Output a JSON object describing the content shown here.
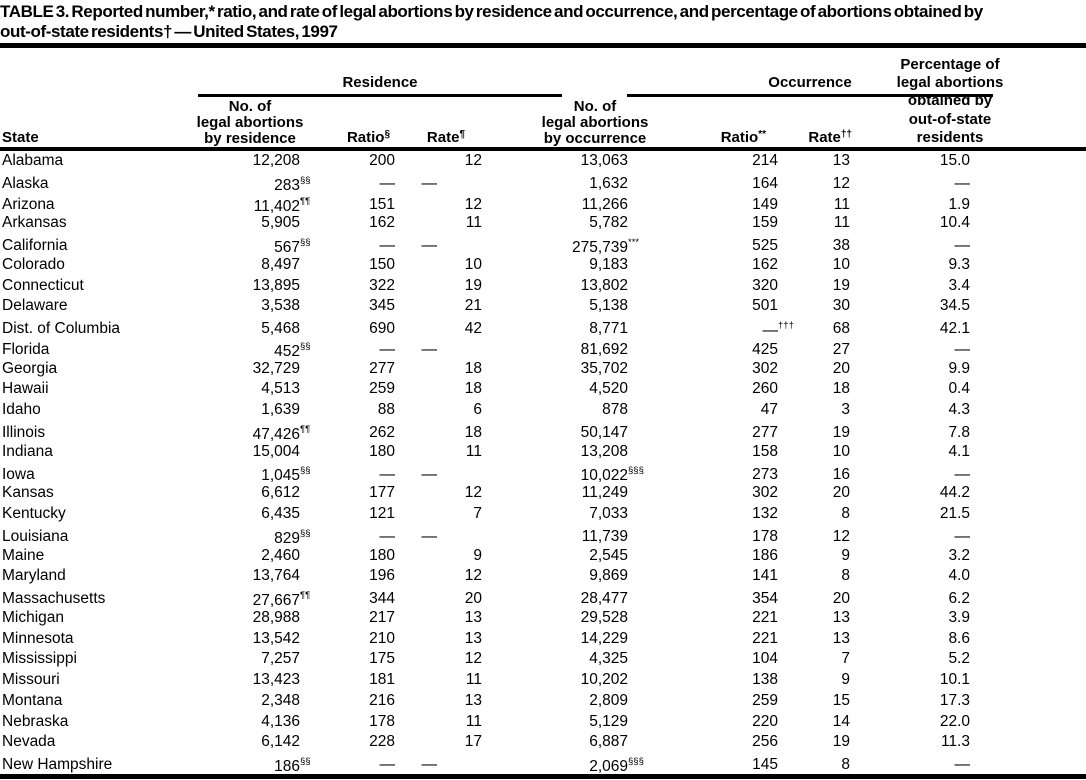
{
  "colors": {
    "text": "#000000",
    "background": "#ffffff"
  },
  "title": {
    "line1": "TABLE 3. Reported number,* ratio, and rate of legal abortions by residence and occurrence, and percentage of abortions obtained by",
    "line2": "out-of-state residents† — United States, 1997"
  },
  "table": {
    "col_state": "State",
    "groups": {
      "residence": "Residence",
      "occurrence": "Occurrence"
    },
    "headers": {
      "res_no_lines": [
        "No. of",
        "legal abortions",
        "by residence"
      ],
      "res_ratio": {
        "label": "Ratio",
        "sup": "§"
      },
      "res_rate": {
        "label": "Rate",
        "sup": "¶"
      },
      "occ_no_lines": [
        "No. of",
        "legal abortions",
        "by occurrence"
      ],
      "occ_ratio": {
        "label": "Ratio",
        "sup": "**"
      },
      "occ_rate": {
        "label": "Rate",
        "sup": "††"
      },
      "pct_lines": [
        "Percentage of",
        "legal abortions",
        "obtained by",
        "out-of-state",
        "residents"
      ]
    },
    "rows": [
      {
        "state": "Alabama",
        "res_no": "12,208",
        "res_no_sup": "",
        "res_ratio": "200",
        "res_rate": "12",
        "occ_no": "13,063",
        "occ_no_sup": "",
        "occ_ratio": "214",
        "occ_ratio_sup": "",
        "occ_rate": "13",
        "pct": "15.0"
      },
      {
        "state": "Alaska",
        "res_no": "283",
        "res_no_sup": "§§",
        "res_ratio": "—",
        "res_rate": "—",
        "occ_no": "1,632",
        "occ_no_sup": "",
        "occ_ratio": "164",
        "occ_ratio_sup": "",
        "occ_rate": "12",
        "pct": "—"
      },
      {
        "state": "Arizona",
        "res_no": "11,402",
        "res_no_sup": "¶¶",
        "res_ratio": "151",
        "res_rate": "12",
        "occ_no": "11,266",
        "occ_no_sup": "",
        "occ_ratio": "149",
        "occ_ratio_sup": "",
        "occ_rate": "11",
        "pct": "1.9"
      },
      {
        "state": "Arkansas",
        "res_no": "5,905",
        "res_no_sup": "",
        "res_ratio": "162",
        "res_rate": "11",
        "occ_no": "5,782",
        "occ_no_sup": "",
        "occ_ratio": "159",
        "occ_ratio_sup": "",
        "occ_rate": "11",
        "pct": "10.4"
      },
      {
        "state": "California",
        "res_no": "567",
        "res_no_sup": "§§",
        "res_ratio": "—",
        "res_rate": "—",
        "occ_no": "275,739",
        "occ_no_sup": "***",
        "occ_ratio": "525",
        "occ_ratio_sup": "",
        "occ_rate": "38",
        "pct": "—"
      },
      {
        "state": "Colorado",
        "res_no": "8,497",
        "res_no_sup": "",
        "res_ratio": "150",
        "res_rate": "10",
        "occ_no": "9,183",
        "occ_no_sup": "",
        "occ_ratio": "162",
        "occ_ratio_sup": "",
        "occ_rate": "10",
        "pct": "9.3"
      },
      {
        "state": "Connecticut",
        "res_no": "13,895",
        "res_no_sup": "",
        "res_ratio": "322",
        "res_rate": "19",
        "occ_no": "13,802",
        "occ_no_sup": "",
        "occ_ratio": "320",
        "occ_ratio_sup": "",
        "occ_rate": "19",
        "pct": "3.4"
      },
      {
        "state": "Delaware",
        "res_no": "3,538",
        "res_no_sup": "",
        "res_ratio": "345",
        "res_rate": "21",
        "occ_no": "5,138",
        "occ_no_sup": "",
        "occ_ratio": "501",
        "occ_ratio_sup": "",
        "occ_rate": "30",
        "pct": "34.5"
      },
      {
        "state": "Dist. of Columbia",
        "res_no": "5,468",
        "res_no_sup": "",
        "res_ratio": "690",
        "res_rate": "42",
        "occ_no": "8,771",
        "occ_no_sup": "",
        "occ_ratio": "—",
        "occ_ratio_sup": "†††",
        "occ_rate": "68",
        "pct": "42.1"
      },
      {
        "state": "Florida",
        "res_no": "452",
        "res_no_sup": "§§",
        "res_ratio": "—",
        "res_rate": "—",
        "occ_no": "81,692",
        "occ_no_sup": "",
        "occ_ratio": "425",
        "occ_ratio_sup": "",
        "occ_rate": "27",
        "pct": "—"
      },
      {
        "state": "Georgia",
        "res_no": "32,729",
        "res_no_sup": "",
        "res_ratio": "277",
        "res_rate": "18",
        "occ_no": "35,702",
        "occ_no_sup": "",
        "occ_ratio": "302",
        "occ_ratio_sup": "",
        "occ_rate": "20",
        "pct": "9.9"
      },
      {
        "state": "Hawaii",
        "res_no": "4,513",
        "res_no_sup": "",
        "res_ratio": "259",
        "res_rate": "18",
        "occ_no": "4,520",
        "occ_no_sup": "",
        "occ_ratio": "260",
        "occ_ratio_sup": "",
        "occ_rate": "18",
        "pct": "0.4"
      },
      {
        "state": "Idaho",
        "res_no": "1,639",
        "res_no_sup": "",
        "res_ratio": "88",
        "res_rate": "6",
        "occ_no": "878",
        "occ_no_sup": "",
        "occ_ratio": "47",
        "occ_ratio_sup": "",
        "occ_rate": "3",
        "pct": "4.3"
      },
      {
        "state": "Illinois",
        "res_no": "47,426",
        "res_no_sup": "¶¶",
        "res_ratio": "262",
        "res_rate": "18",
        "occ_no": "50,147",
        "occ_no_sup": "",
        "occ_ratio": "277",
        "occ_ratio_sup": "",
        "occ_rate": "19",
        "pct": "7.8"
      },
      {
        "state": "Indiana",
        "res_no": "15,004",
        "res_no_sup": "",
        "res_ratio": "180",
        "res_rate": "11",
        "occ_no": "13,208",
        "occ_no_sup": "",
        "occ_ratio": "158",
        "occ_ratio_sup": "",
        "occ_rate": "10",
        "pct": "4.1"
      },
      {
        "state": "Iowa",
        "res_no": "1,045",
        "res_no_sup": "§§",
        "res_ratio": "—",
        "res_rate": "—",
        "occ_no": "10,022",
        "occ_no_sup": "§§§",
        "occ_ratio": "273",
        "occ_ratio_sup": "",
        "occ_rate": "16",
        "pct": "—"
      },
      {
        "state": "Kansas",
        "res_no": "6,612",
        "res_no_sup": "",
        "res_ratio": "177",
        "res_rate": "12",
        "occ_no": "11,249",
        "occ_no_sup": "",
        "occ_ratio": "302",
        "occ_ratio_sup": "",
        "occ_rate": "20",
        "pct": "44.2"
      },
      {
        "state": "Kentucky",
        "res_no": "6,435",
        "res_no_sup": "",
        "res_ratio": "121",
        "res_rate": "7",
        "occ_no": "7,033",
        "occ_no_sup": "",
        "occ_ratio": "132",
        "occ_ratio_sup": "",
        "occ_rate": "8",
        "pct": "21.5"
      },
      {
        "state": "Louisiana",
        "res_no": "829",
        "res_no_sup": "§§",
        "res_ratio": "—",
        "res_rate": "—",
        "occ_no": "11,739",
        "occ_no_sup": "",
        "occ_ratio": "178",
        "occ_ratio_sup": "",
        "occ_rate": "12",
        "pct": "—"
      },
      {
        "state": "Maine",
        "res_no": "2,460",
        "res_no_sup": "",
        "res_ratio": "180",
        "res_rate": "9",
        "occ_no": "2,545",
        "occ_no_sup": "",
        "occ_ratio": "186",
        "occ_ratio_sup": "",
        "occ_rate": "9",
        "pct": "3.2"
      },
      {
        "state": "Maryland",
        "res_no": "13,764",
        "res_no_sup": "",
        "res_ratio": "196",
        "res_rate": "12",
        "occ_no": "9,869",
        "occ_no_sup": "",
        "occ_ratio": "141",
        "occ_ratio_sup": "",
        "occ_rate": "8",
        "pct": "4.0"
      },
      {
        "state": "Massachusetts",
        "res_no": "27,667",
        "res_no_sup": "¶¶",
        "res_ratio": "344",
        "res_rate": "20",
        "occ_no": "28,477",
        "occ_no_sup": "",
        "occ_ratio": "354",
        "occ_ratio_sup": "",
        "occ_rate": "20",
        "pct": "6.2"
      },
      {
        "state": "Michigan",
        "res_no": "28,988",
        "res_no_sup": "",
        "res_ratio": "217",
        "res_rate": "13",
        "occ_no": "29,528",
        "occ_no_sup": "",
        "occ_ratio": "221",
        "occ_ratio_sup": "",
        "occ_rate": "13",
        "pct": "3.9"
      },
      {
        "state": "Minnesota",
        "res_no": "13,542",
        "res_no_sup": "",
        "res_ratio": "210",
        "res_rate": "13",
        "occ_no": "14,229",
        "occ_no_sup": "",
        "occ_ratio": "221",
        "occ_ratio_sup": "",
        "occ_rate": "13",
        "pct": "8.6"
      },
      {
        "state": "Mississippi",
        "res_no": "7,257",
        "res_no_sup": "",
        "res_ratio": "175",
        "res_rate": "12",
        "occ_no": "4,325",
        "occ_no_sup": "",
        "occ_ratio": "104",
        "occ_ratio_sup": "",
        "occ_rate": "7",
        "pct": "5.2"
      },
      {
        "state": "Missouri",
        "res_no": "13,423",
        "res_no_sup": "",
        "res_ratio": "181",
        "res_rate": "11",
        "occ_no": "10,202",
        "occ_no_sup": "",
        "occ_ratio": "138",
        "occ_ratio_sup": "",
        "occ_rate": "9",
        "pct": "10.1"
      },
      {
        "state": "Montana",
        "res_no": "2,348",
        "res_no_sup": "",
        "res_ratio": "216",
        "res_rate": "13",
        "occ_no": "2,809",
        "occ_no_sup": "",
        "occ_ratio": "259",
        "occ_ratio_sup": "",
        "occ_rate": "15",
        "pct": "17.3"
      },
      {
        "state": "Nebraska",
        "res_no": "4,136",
        "res_no_sup": "",
        "res_ratio": "178",
        "res_rate": "11",
        "occ_no": "5,129",
        "occ_no_sup": "",
        "occ_ratio": "220",
        "occ_ratio_sup": "",
        "occ_rate": "14",
        "pct": "22.0"
      },
      {
        "state": "Nevada",
        "res_no": "6,142",
        "res_no_sup": "",
        "res_ratio": "228",
        "res_rate": "17",
        "occ_no": "6,887",
        "occ_no_sup": "",
        "occ_ratio": "256",
        "occ_ratio_sup": "",
        "occ_rate": "19",
        "pct": "11.3"
      },
      {
        "state": "New Hampshire",
        "res_no": "186",
        "res_no_sup": "§§",
        "res_ratio": "—",
        "res_rate": "—",
        "occ_no": "2,069",
        "occ_no_sup": "§§§",
        "occ_ratio": "145",
        "occ_ratio_sup": "",
        "occ_rate": "8",
        "pct": "—"
      }
    ]
  }
}
